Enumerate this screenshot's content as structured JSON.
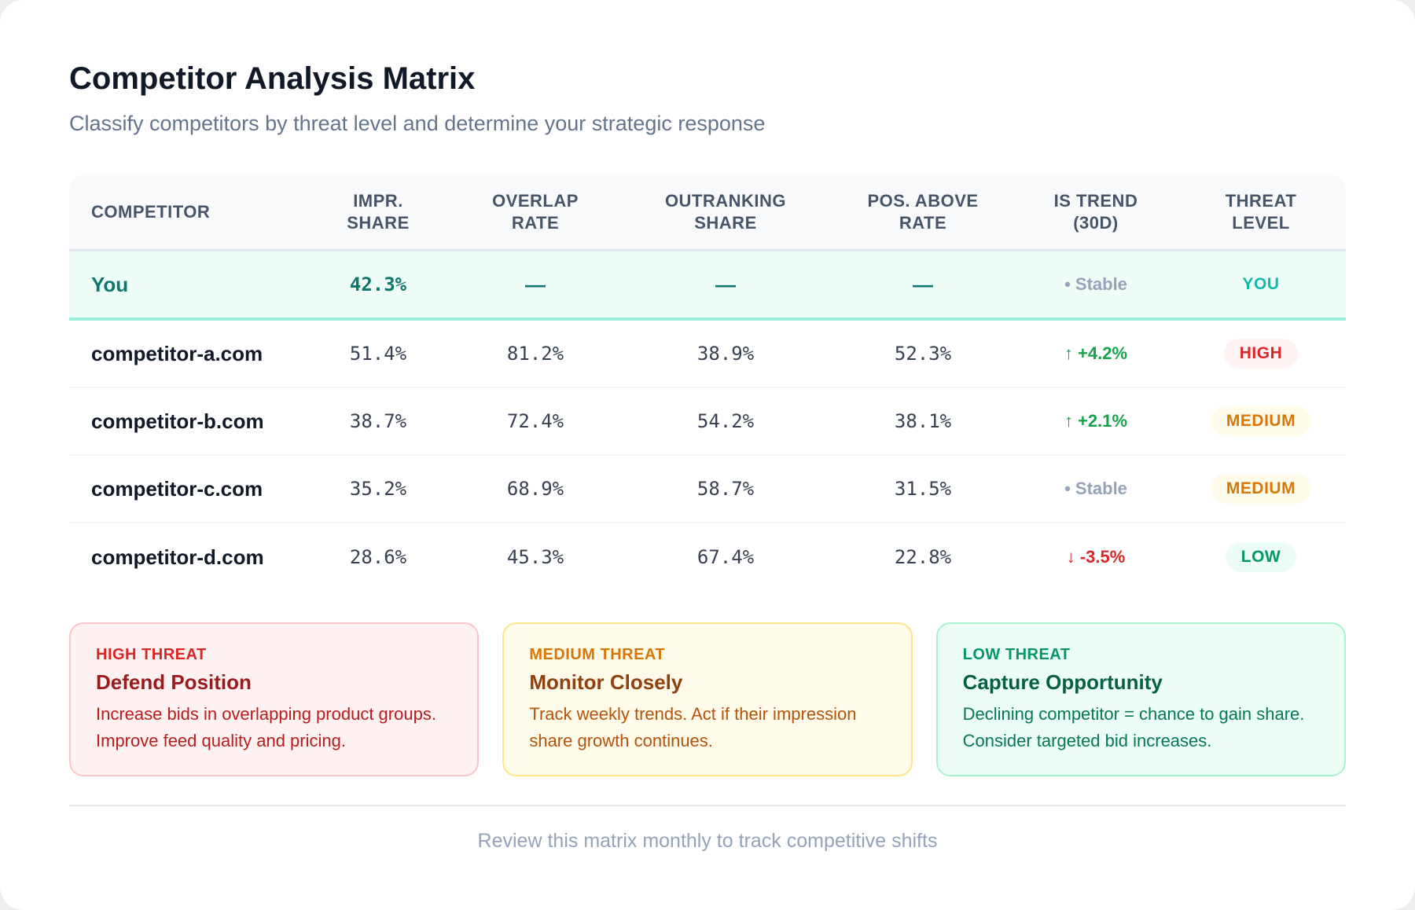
{
  "header": {
    "title": "Competitor Analysis Matrix",
    "subtitle": "Classify competitors by threat level and determine your strategic response"
  },
  "table": {
    "columns": [
      "COMPETITOR",
      "IMPR.\nSHARE",
      "OVERLAP\nRATE",
      "OUTRANKING\nSHARE",
      "POS. ABOVE\nRATE",
      "IS TREND\n(30D)",
      "THREAT\nLEVEL"
    ],
    "you": {
      "name": "You",
      "impr": "42.3%",
      "overlap": "—",
      "outranking": "—",
      "pos_above": "—",
      "trend": "• Stable",
      "threat": "YOU"
    },
    "rows": [
      {
        "name": "competitor-a.com",
        "impr": "51.4%",
        "overlap": "81.2%",
        "outranking": "38.9%",
        "pos_above": "52.3%",
        "trend": "↑ +4.2%",
        "trend_dir": "up",
        "threat": "HIGH"
      },
      {
        "name": "competitor-b.com",
        "impr": "38.7%",
        "overlap": "72.4%",
        "outranking": "54.2%",
        "pos_above": "38.1%",
        "trend": "↑ +2.1%",
        "trend_dir": "up",
        "threat": "MEDIUM"
      },
      {
        "name": "competitor-c.com",
        "impr": "35.2%",
        "overlap": "68.9%",
        "outranking": "58.7%",
        "pos_above": "31.5%",
        "trend": "• Stable",
        "trend_dir": "stable",
        "threat": "MEDIUM"
      },
      {
        "name": "competitor-d.com",
        "impr": "28.6%",
        "overlap": "45.3%",
        "outranking": "67.4%",
        "pos_above": "22.8%",
        "trend": "↓ -3.5%",
        "trend_dir": "down",
        "threat": "LOW"
      }
    ]
  },
  "cards": [
    {
      "label": "HIGH THREAT",
      "title": "Defend Position",
      "text": "Increase bids in overlapping product groups. Improve feed quality and pricing."
    },
    {
      "label": "MEDIUM THREAT",
      "title": "Monitor Closely",
      "text": "Track weekly trends. Act if their impression share growth continues."
    },
    {
      "label": "LOW THREAT",
      "title": "Capture Opportunity",
      "text": "Declining competitor = chance to gain share. Consider targeted bid increases."
    }
  ],
  "footer": "Review this matrix monthly to track competitive shifts",
  "colors": {
    "high": "#dc2626",
    "medium": "#d97706",
    "low": "#059669",
    "you": "#0f766e"
  }
}
